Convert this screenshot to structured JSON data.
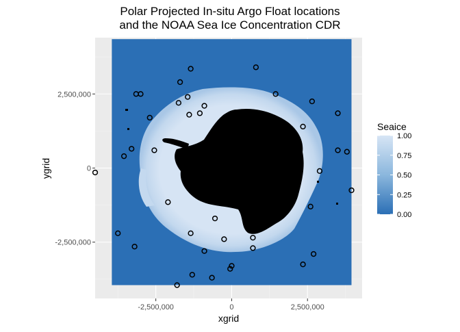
{
  "chart_data": {
    "type": "scatter",
    "title_lines": [
      "Polar Projected In-situ Argo Float locations",
      "and the NOAA Sea Ice Concentration CDR"
    ],
    "xlabel": "xgrid",
    "ylabel": "ygrid",
    "xlim": [
      -4500000,
      4300000
    ],
    "ylim": [
      -4400000,
      4400000
    ],
    "x_ticks": [
      {
        "value": -2500000,
        "label": "-2,500,000"
      },
      {
        "value": 0,
        "label": "0"
      },
      {
        "value": 2500000,
        "label": "2,500,000"
      }
    ],
    "y_ticks": [
      {
        "value": 2500000,
        "label": "2,500,000"
      },
      {
        "value": 0,
        "label": "0"
      },
      {
        "value": -2500000,
        "label": "-2,500,000"
      }
    ],
    "grid": true,
    "raster": {
      "layer": "NOAA Sea Ice Concentration CDR",
      "x_range": [
        -3950000,
        3950000
      ],
      "y_range": [
        -3950000,
        4350000
      ],
      "open_water_value": 0,
      "land": "black"
    },
    "legend": {
      "title": "Seaice",
      "placement": "right",
      "min": 0,
      "max": 1,
      "ticks": [
        {
          "value": 1.0,
          "label": "1.00"
        },
        {
          "value": 0.75,
          "label": "0.75"
        },
        {
          "value": 0.5,
          "label": "0.50"
        },
        {
          "value": 0.25,
          "label": "0.25"
        },
        {
          "value": 0.0,
          "label": "0.00"
        }
      ]
    },
    "series": [
      {
        "marker": "open-circle",
        "points": [
          [
            -4500000,
            -150000
          ],
          [
            -3550000,
            400000
          ],
          [
            -3300000,
            650000
          ],
          [
            -3200000,
            -2650000
          ],
          [
            -3150000,
            2500000
          ],
          [
            -3000000,
            2500000
          ],
          [
            -2700000,
            1700000
          ],
          [
            -2550000,
            600000
          ],
          [
            -2100000,
            -1150000
          ],
          [
            -1750000,
            2200000
          ],
          [
            -1700000,
            2900000
          ],
          [
            -1450000,
            2400000
          ],
          [
            -1400000,
            1800000
          ],
          [
            -1350000,
            3350000
          ],
          [
            -1350000,
            -2200000
          ],
          [
            -1300000,
            -3600000
          ],
          [
            -1050000,
            1850000
          ],
          [
            -900000,
            2100000
          ],
          [
            -900000,
            -2800000
          ],
          [
            -650000,
            -3700000
          ],
          [
            -550000,
            -1700000
          ],
          [
            -250000,
            -2400000
          ],
          [
            -50000,
            -3400000
          ],
          [
            0,
            -3300000
          ],
          [
            700000,
            -2350000
          ],
          [
            700000,
            -2700000
          ],
          [
            800000,
            3400000
          ],
          [
            1450000,
            2500000
          ],
          [
            2350000,
            1400000
          ],
          [
            2350000,
            -3250000
          ],
          [
            2650000,
            2250000
          ],
          [
            2700000,
            -2900000
          ],
          [
            2600000,
            -1300000
          ],
          [
            2900000,
            -100000
          ],
          [
            3500000,
            1850000
          ],
          [
            3500000,
            600000
          ],
          [
            3800000,
            550000
          ],
          [
            3950000,
            -750000
          ],
          [
            -1800000,
            -3950000
          ],
          [
            -3750000,
            -2200000
          ]
        ]
      }
    ],
    "colors": {
      "panel_background": "#ebebeb",
      "grid_major": "#ffffff",
      "open_water": "#2b6fb5",
      "full_ice": "#d6e4f4",
      "land": "#000000",
      "marker": "#000000",
      "colorbar_low": "#2b6fb5",
      "colorbar_high": "#d7e5f5"
    }
  }
}
